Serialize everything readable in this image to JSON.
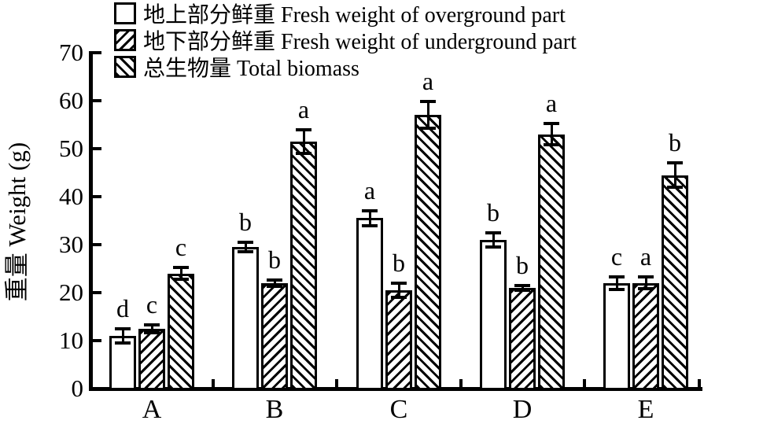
{
  "colors": {
    "ink": "#000000",
    "background": "#ffffff"
  },
  "chart_data": {
    "type": "bar",
    "title": "",
    "xlabel": "",
    "ylabel": "重量 Weight (g)",
    "ylim": [
      0,
      70
    ],
    "ytick_step": 10,
    "yticks": [
      0,
      10,
      20,
      30,
      40,
      50,
      60,
      70
    ],
    "grid": false,
    "legend_position": "top-left",
    "categories": [
      "A",
      "B",
      "C",
      "D",
      "E"
    ],
    "series": [
      {
        "key": "overground",
        "name": "地上部分鲜重 Fresh weight of overground part",
        "pattern": "plain",
        "values": [
          11,
          29.5,
          35.5,
          31,
          22
        ],
        "errors": [
          1.5,
          1.0,
          1.5,
          1.5,
          1.3
        ],
        "letters": [
          "d",
          "b",
          "a",
          "b",
          "c"
        ]
      },
      {
        "key": "underground",
        "name": "地下部分鲜重 Fresh weight of underground part",
        "pattern": "hatch-forward",
        "values": [
          12.5,
          22,
          20.5,
          21,
          22
        ],
        "errors": [
          0.8,
          0.7,
          1.5,
          0.5,
          1.2
        ],
        "letters": [
          "c",
          "b",
          "b",
          "b",
          "a"
        ]
      },
      {
        "key": "total",
        "name": "总生物量 Total biomass",
        "pattern": "hatch-back",
        "values": [
          24,
          51.5,
          57,
          53,
          44.5
        ],
        "errors": [
          1.2,
          2.5,
          2.8,
          2.2,
          2.5
        ],
        "letters": [
          "c",
          "a",
          "a",
          "a",
          "b"
        ]
      }
    ]
  }
}
